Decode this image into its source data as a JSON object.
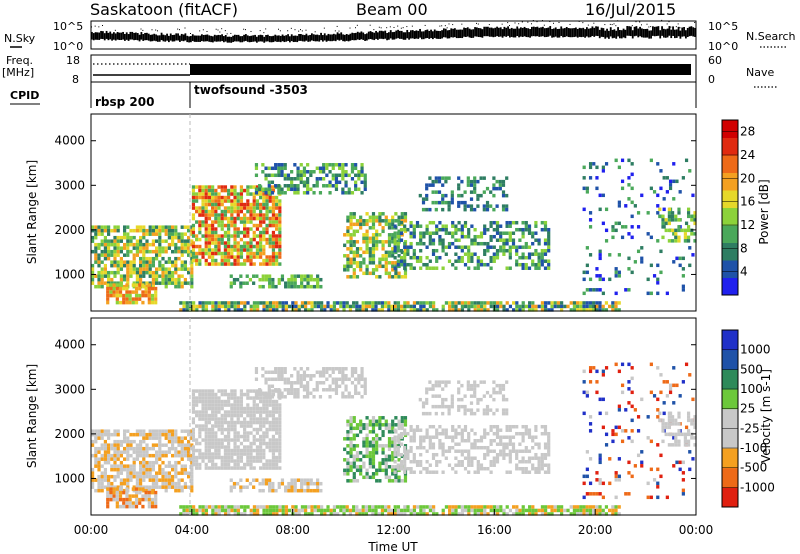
{
  "header": {
    "radar": "Saskatoon (fitACF)",
    "beam": "Beam 00",
    "date": "16/Jul/2015"
  },
  "top_strip": {
    "left_label": "N.Sky",
    "right_label": "N.Search",
    "left_ticks": [
      "10^5",
      "10^0"
    ],
    "right_ticks": [
      "10^5",
      "10^0"
    ]
  },
  "freq_strip": {
    "left_label_1": "Freq.",
    "left_label_2": "[MHz]",
    "right_label": "Nave",
    "left_ticks": [
      "18",
      "8"
    ],
    "right_ticks": [
      "60",
      "0"
    ]
  },
  "cpid_strip": {
    "label": "CPID",
    "programs": [
      {
        "name": "rbsp 200",
        "start": "00:00"
      },
      {
        "name": "twofsound -3503",
        "start": "04:00"
      }
    ]
  },
  "colors": {
    "power": [
      "#2020ee",
      "#1f52a8",
      "#2e7d62",
      "#4aa85a",
      "#8cd23a",
      "#e6d82a",
      "#f4a020",
      "#ee6a18",
      "#e02a10",
      "#d00000"
    ],
    "velocity": [
      "#e02010",
      "#ee6a18",
      "#f4a020",
      "#c8c8c8",
      "#c8c8c8",
      "#6cc83a",
      "#2e8a5a",
      "#1f52a8",
      "#2030c8"
    ]
  },
  "chart_data": [
    {
      "type": "heatmap",
      "panel": "power",
      "ylabel": "Slant Range [km]",
      "yticks": [
        1000,
        2000,
        3000,
        4000
      ],
      "ylim": [
        180,
        4600
      ],
      "xlim_hours": [
        0,
        24
      ],
      "colorbar_label": "Power [dB]",
      "colorbar_ticks": [
        "4",
        "8",
        "12",
        "16",
        "20",
        "24",
        "28"
      ],
      "colorbar_range": [
        0,
        30
      ]
    },
    {
      "type": "heatmap",
      "panel": "velocity",
      "ylabel": "Slant Range [km]",
      "yticks": [
        1000,
        2000,
        3000,
        4000
      ],
      "ylim": [
        180,
        4600
      ],
      "xlim_hours": [
        0,
        24
      ],
      "xlabel": "Time UT",
      "xticks": [
        "00:00",
        "04:00",
        "08:00",
        "12:00",
        "16:00",
        "20:00",
        "00:00"
      ],
      "colorbar_label": "Velocity [m s-1]",
      "colorbar_ticks": [
        "1000",
        "500",
        "100",
        "25",
        "-25",
        "-100",
        "-500",
        "-1000"
      ]
    }
  ]
}
